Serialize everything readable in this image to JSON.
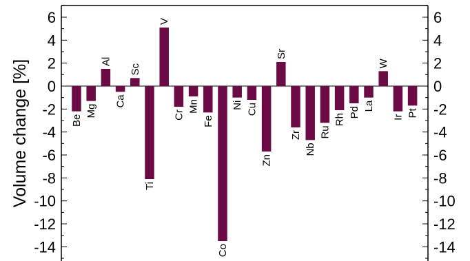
{
  "chart_data": {
    "type": "bar",
    "title": "",
    "xlabel": "",
    "ylabel": "Volume change  [%]",
    "ylim": [
      -15,
      7
    ],
    "yticks": [
      6,
      4,
      2,
      0,
      -2,
      -4,
      -6,
      -8,
      -10,
      -12,
      -14
    ],
    "y_axis_both_sides": true,
    "grid": false,
    "bar_color": "#6b0a44",
    "categories": [
      "Be",
      "Mg",
      "Al",
      "Ca",
      "Sc",
      "Ti",
      "V",
      "Cr",
      "Mn",
      "Fe",
      "Co",
      "Ni",
      "Cu",
      "Zn",
      "Sr",
      "Zr",
      "Nb",
      "Ru",
      "Rh",
      "Pd",
      "La",
      "W",
      "Ir",
      "Pt"
    ],
    "values": [
      -2.2,
      -1.3,
      1.5,
      -0.5,
      0.7,
      -8.1,
      5.1,
      -1.8,
      -0.9,
      -2.3,
      -13.5,
      -1.0,
      -1.2,
      -5.7,
      2.1,
      -3.6,
      -4.7,
      -3.2,
      -2.1,
      -1.5,
      -1.0,
      1.3,
      -2.2,
      -1.7
    ]
  }
}
